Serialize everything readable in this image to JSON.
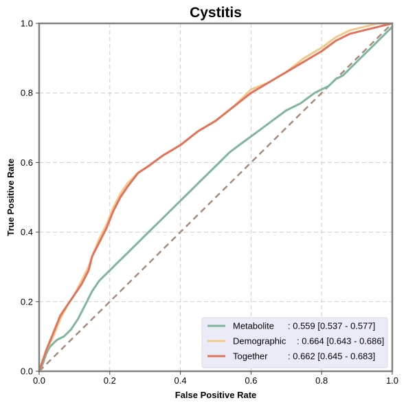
{
  "chart_data": {
    "type": "line",
    "title": "Cystitis",
    "xlabel": "False Positive Rate",
    "ylabel": "True Positive Rate",
    "xlim": [
      0,
      1
    ],
    "ylim": [
      0,
      1
    ],
    "xticks": [
      "0.0",
      "0.2",
      "0.4",
      "0.6",
      "0.8",
      "1.0"
    ],
    "yticks": [
      "0.0",
      "0.2",
      "0.4",
      "0.6",
      "0.8",
      "1.0"
    ],
    "grid": true,
    "legend_position": "lower-right",
    "legend_background": "#ebebf8",
    "diagonal_color": "#a68b7b",
    "series": [
      {
        "name": "Metabolite",
        "label": ": 0.559 [0.537 - 0.577]",
        "color": "#7fb69b",
        "x": [
          0,
          0.01,
          0.02,
          0.03,
          0.05,
          0.07,
          0.09,
          0.11,
          0.13,
          0.15,
          0.17,
          0.19,
          0.2,
          0.22,
          0.25,
          0.28,
          0.31,
          0.34,
          0.37,
          0.4,
          0.43,
          0.46,
          0.5,
          0.54,
          0.58,
          0.62,
          0.66,
          0.7,
          0.74,
          0.78,
          0.8,
          0.82,
          0.84,
          0.86,
          0.88,
          0.9,
          0.92,
          0.94,
          0.96,
          0.98,
          1.0
        ],
        "y": [
          0,
          0.02,
          0.05,
          0.07,
          0.09,
          0.1,
          0.12,
          0.15,
          0.19,
          0.23,
          0.26,
          0.28,
          0.29,
          0.31,
          0.34,
          0.37,
          0.4,
          0.43,
          0.46,
          0.49,
          0.52,
          0.55,
          0.59,
          0.63,
          0.66,
          0.69,
          0.72,
          0.75,
          0.77,
          0.8,
          0.81,
          0.82,
          0.84,
          0.85,
          0.87,
          0.89,
          0.91,
          0.93,
          0.95,
          0.97,
          0.99
        ]
      },
      {
        "name": "Demographic",
        "label": ": 0.664 [0.643 - 0.686]",
        "color": "#f2c88b",
        "x": [
          0,
          0.01,
          0.02,
          0.04,
          0.06,
          0.08,
          0.1,
          0.12,
          0.14,
          0.15,
          0.17,
          0.19,
          0.21,
          0.23,
          0.25,
          0.28,
          0.31,
          0.35,
          0.4,
          0.45,
          0.5,
          0.55,
          0.58,
          0.6,
          0.65,
          0.7,
          0.75,
          0.8,
          0.84,
          0.88,
          0.92,
          0.96,
          1.0
        ],
        "y": [
          0,
          0.03,
          0.06,
          0.1,
          0.15,
          0.19,
          0.22,
          0.26,
          0.3,
          0.33,
          0.38,
          0.42,
          0.47,
          0.51,
          0.54,
          0.57,
          0.59,
          0.62,
          0.65,
          0.69,
          0.72,
          0.76,
          0.79,
          0.81,
          0.83,
          0.86,
          0.9,
          0.93,
          0.96,
          0.98,
          0.99,
          1.0,
          1.0
        ]
      },
      {
        "name": "Together",
        "label": ": 0.662 [0.645 - 0.683]",
        "color": "#e0735a",
        "x": [
          0,
          0.01,
          0.02,
          0.04,
          0.06,
          0.08,
          0.1,
          0.12,
          0.14,
          0.15,
          0.17,
          0.19,
          0.21,
          0.23,
          0.25,
          0.28,
          0.31,
          0.35,
          0.4,
          0.45,
          0.5,
          0.55,
          0.6,
          0.65,
          0.7,
          0.75,
          0.8,
          0.84,
          0.88,
          0.92,
          0.96,
          1.0
        ],
        "y": [
          0,
          0.03,
          0.06,
          0.11,
          0.16,
          0.19,
          0.22,
          0.25,
          0.29,
          0.33,
          0.37,
          0.41,
          0.46,
          0.5,
          0.53,
          0.57,
          0.59,
          0.62,
          0.65,
          0.69,
          0.72,
          0.76,
          0.8,
          0.83,
          0.86,
          0.89,
          0.92,
          0.95,
          0.97,
          0.98,
          0.99,
          1.0
        ]
      }
    ]
  }
}
